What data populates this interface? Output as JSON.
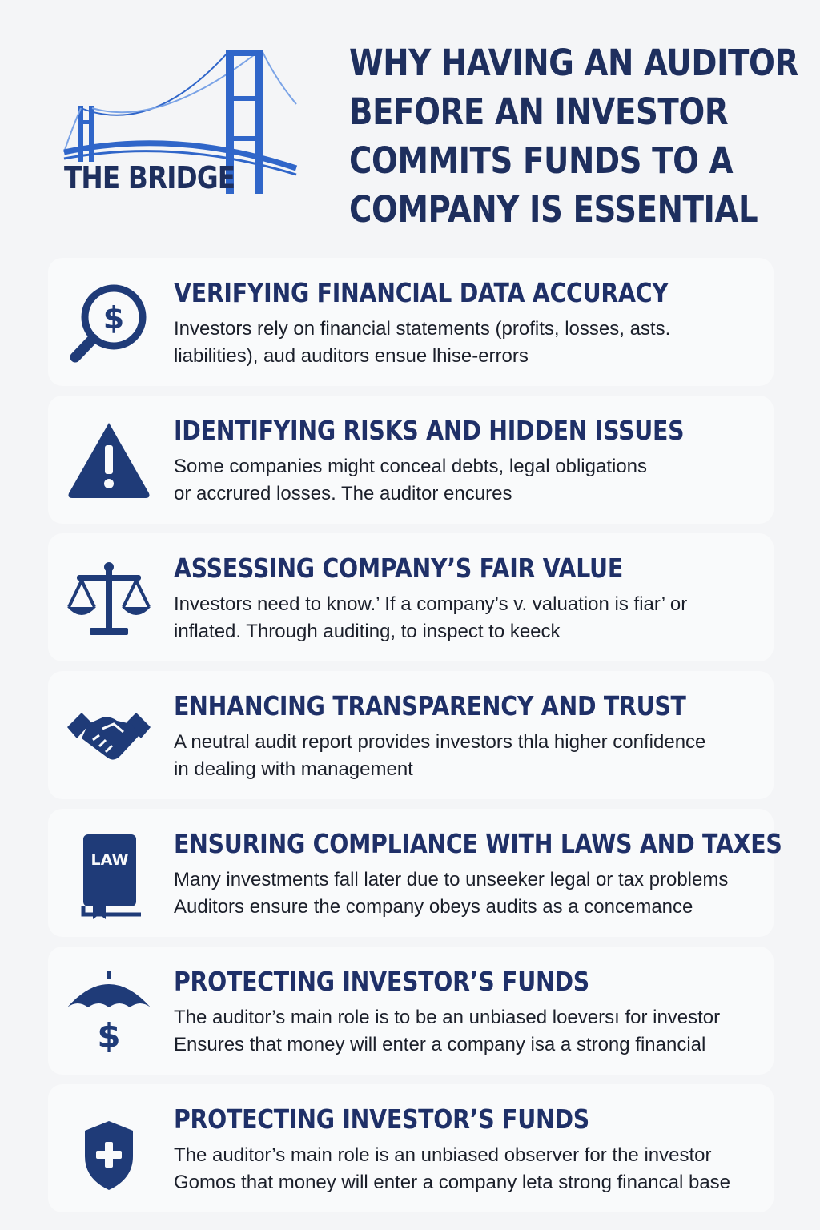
{
  "brand": {
    "name": "THE BRIDGE"
  },
  "title_lines": [
    "WHY HAVING AN AUDITOR",
    "BEFORE AN INVESTOR",
    "COMMITS FUNDS TO A",
    "COMPANY IS ESSENTIAL"
  ],
  "colors": {
    "primary": "#1f3b78",
    "bridge": "#3066c9",
    "text": "#1b1f2a",
    "background": "#f4f5f7"
  },
  "cards": [
    {
      "icon": "magnifier-dollar-icon",
      "title": "VERIFYING FINANCIAL DATA ACCURACY",
      "line1": "Investors rely on financial statements (profits, losses, asts.",
      "line2": "liabilities), aud auditors ensue lhise-errors"
    },
    {
      "icon": "warning-icon",
      "title": "IDENTIFYING RISKS AND HIDDEN ISSUES",
      "line1": "Some companies might conceal debts, legal obligations",
      "line2": "or accrured losses. The auditor encures"
    },
    {
      "icon": "scales-icon",
      "title": "ASSESSING COMPANY’S FAIR VALUE",
      "line1": "Investors need to know.’ If a company’s v. valuation is fiar’  or",
      "line2": "inflated. Through auditing, to inspect to keeck"
    },
    {
      "icon": "handshake-icon",
      "title": "ENHANCING TRANSPARENCY AND TRUST",
      "line1": "A neutral audit report provides investors thla higher confidence",
      "line2": "in dealing with management"
    },
    {
      "icon": "law-book-icon",
      "icon_label": "LAW",
      "title": "ENSURING COMPLIANCE WITH LAWS AND TAXES",
      "line1": "Many investments fall later due to unseeker legal or tax problems",
      "line2": "Auditors ensure the company obeys audits as a concemance"
    },
    {
      "icon": "umbrella-dollar-icon",
      "title": "PROTECTING INVESTOR’S FUNDS",
      "line1": "The auditor’s main role is to be an unbiased loeversı for investor",
      "line2": "Ensures that money will enter a company isa a strong financial"
    },
    {
      "icon": "shield-cross-icon",
      "title": "PROTECTING INVESTOR’S FUNDS",
      "line1": "The auditor’s main role is an unbiased observer for the investor",
      "line2": "Gomos that money will enter a company leta strong financal base"
    }
  ]
}
